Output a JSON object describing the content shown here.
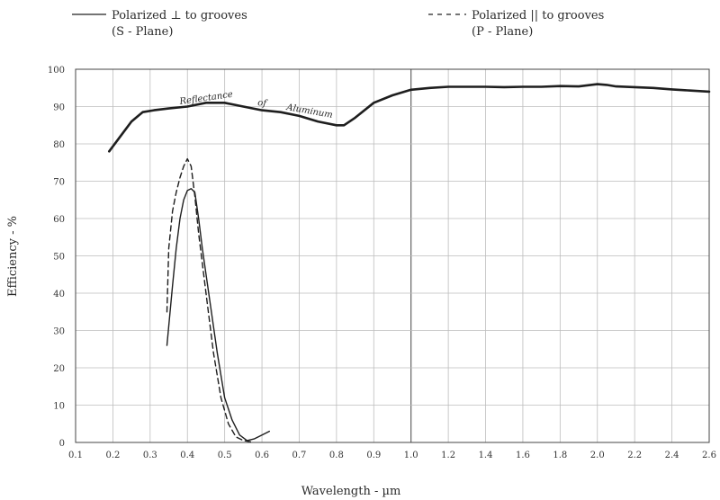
{
  "chart_data": {
    "type": "line",
    "xlabel": "Wavelength - µm",
    "ylabel": "Efficiency - %",
    "ylim": [
      0,
      100
    ],
    "y_ticks": [
      "0",
      "10",
      "20",
      "30",
      "40",
      "50",
      "60",
      "70",
      "80",
      "90",
      "100"
    ],
    "x_ticks": [
      {
        "v": 0.1,
        "label": "0.1"
      },
      {
        "v": 0.2,
        "label": "0.2"
      },
      {
        "v": 0.3,
        "label": "0.3"
      },
      {
        "v": 0.4,
        "label": "0.4"
      },
      {
        "v": 0.5,
        "label": "0.5"
      },
      {
        "v": 0.6,
        "label": "0.6"
      },
      {
        "v": 0.7,
        "label": "0.7"
      },
      {
        "v": 0.8,
        "label": "0.8"
      },
      {
        "v": 0.9,
        "label": "0.9"
      },
      {
        "v": 1.0,
        "label": "1.0"
      },
      {
        "v": 1.2,
        "label": "1.2"
      },
      {
        "v": 1.4,
        "label": "1.4"
      },
      {
        "v": 1.6,
        "label": "1.6"
      },
      {
        "v": 1.8,
        "label": "1.8"
      },
      {
        "v": 2.0,
        "label": "2.0"
      },
      {
        "v": 2.2,
        "label": "2.2"
      },
      {
        "v": 2.4,
        "label": "2.4"
      },
      {
        "v": 2.6,
        "label": "2.6"
      }
    ],
    "grid": true,
    "legend": [
      {
        "style": "solid",
        "text": "Polarized ⊥ to grooves",
        "sub": "(S - Plane)"
      },
      {
        "style": "dashed",
        "text": "Polarized || to grooves",
        "sub": "(P - Plane)"
      }
    ],
    "annotations": [
      "Reflectance",
      "of",
      "Aluminum"
    ],
    "series": [
      {
        "style": "solid",
        "x": [
          0.19,
          0.22,
          0.25,
          0.28,
          0.31,
          0.35,
          0.4,
          0.45,
          0.5,
          0.55,
          0.6,
          0.65,
          0.7,
          0.75,
          0.8,
          0.82,
          0.85,
          0.9,
          0.95,
          1.0,
          1.1,
          1.2,
          1.3,
          1.4,
          1.5,
          1.6,
          1.7,
          1.8,
          1.9,
          2.0,
          2.05,
          2.1,
          2.2,
          2.3,
          2.4,
          2.5,
          2.6
        ],
        "y": [
          78,
          82,
          86,
          88.5,
          89,
          89.5,
          90,
          91,
          91,
          90,
          89,
          88.5,
          87.5,
          86,
          85,
          85,
          87,
          91,
          93,
          94.5,
          95,
          95.3,
          95.3,
          95.3,
          95.2,
          95.3,
          95.3,
          95.5,
          95.4,
          96,
          95.8,
          95.4,
          95.2,
          95,
          94.6,
          94.3,
          94
        ]
      },
      {
        "style": "solid",
        "x": [
          0.345,
          0.36,
          0.37,
          0.38,
          0.39,
          0.4,
          0.41,
          0.42,
          0.43,
          0.44,
          0.46,
          0.48,
          0.5,
          0.52,
          0.54,
          0.56,
          0.58,
          0.6,
          0.62
        ],
        "y": [
          26,
          42,
          52,
          60,
          65,
          67.5,
          68,
          67,
          60,
          52,
          38,
          24,
          12,
          6,
          2,
          0.5,
          1,
          2,
          3
        ]
      },
      {
        "style": "dashed",
        "x": [
          0.345,
          0.35,
          0.36,
          0.37,
          0.38,
          0.39,
          0.4,
          0.41,
          0.42,
          0.43,
          0.45,
          0.47,
          0.49,
          0.51,
          0.53,
          0.55,
          0.57
        ],
        "y": [
          35,
          52,
          62,
          67,
          71,
          74,
          76,
          74,
          66,
          56,
          40,
          24,
          12,
          5,
          1.5,
          0.5,
          0.2
        ]
      }
    ]
  }
}
